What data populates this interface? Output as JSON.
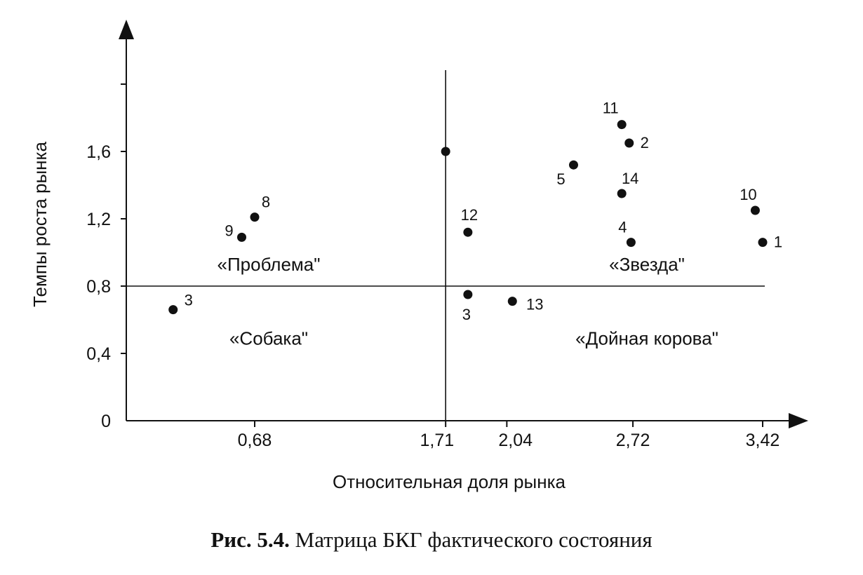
{
  "chart_data": {
    "type": "scatter",
    "title": "",
    "xlabel": "Относительная доля рынка",
    "ylabel": "Темпы роста рынка",
    "x_ticks": [
      {
        "value": 0.68,
        "label": "0,68"
      },
      {
        "value": 1.71,
        "label": "1,71"
      },
      {
        "value": 2.04,
        "label": "2,04"
      },
      {
        "value": 2.72,
        "label": "2,72"
      },
      {
        "value": 3.42,
        "label": "3,42"
      }
    ],
    "y_ticks": [
      {
        "value": 0,
        "label": "0"
      },
      {
        "value": 0.4,
        "label": "0,4"
      },
      {
        "value": 0.8,
        "label": "0,8"
      },
      {
        "value": 1.2,
        "label": "1,2"
      },
      {
        "value": 1.6,
        "label": "1,6"
      },
      {
        "value": 2.0,
        "label": ""
      }
    ],
    "grid": false,
    "divider_x": 1.71,
    "divider_y": 0.8,
    "points": [
      {
        "label": "1",
        "x": 3.42,
        "y": 1.06
      },
      {
        "label": "2",
        "x": 2.7,
        "y": 1.65
      },
      {
        "label": "3",
        "x": 0.24,
        "y": 0.66
      },
      {
        "label": "3",
        "x": 1.83,
        "y": 0.75
      },
      {
        "label": "4",
        "x": 2.71,
        "y": 1.06
      },
      {
        "label": "5",
        "x": 2.4,
        "y": 1.52
      },
      {
        "label": "8",
        "x": 0.68,
        "y": 1.21
      },
      {
        "label": "9",
        "x": 0.61,
        "y": 1.09
      },
      {
        "label": "10",
        "x": 3.38,
        "y": 1.25
      },
      {
        "label": "11",
        "x": 2.66,
        "y": 1.76
      },
      {
        "label": "12",
        "x": 1.83,
        "y": 1.12
      },
      {
        "label": "13",
        "x": 2.07,
        "y": 0.71
      },
      {
        "label": "14",
        "x": 2.66,
        "y": 1.35
      },
      {
        "label": "",
        "x": 1.71,
        "y": 1.6
      }
    ],
    "quadrants": [
      {
        "label": "«Проблема\"",
        "x": 0.68,
        "y": 0.93
      },
      {
        "label": "«Звезда\"",
        "x": 2.72,
        "y": 0.93
      },
      {
        "label": "«Собака\"",
        "x": 0.68,
        "y": 0.49
      },
      {
        "label": "«Дойная корова\"",
        "x": 2.72,
        "y": 0.49
      }
    ]
  },
  "caption": {
    "number": "Рис. 5.4.",
    "text": " Матрица БКГ фактического состояния"
  }
}
